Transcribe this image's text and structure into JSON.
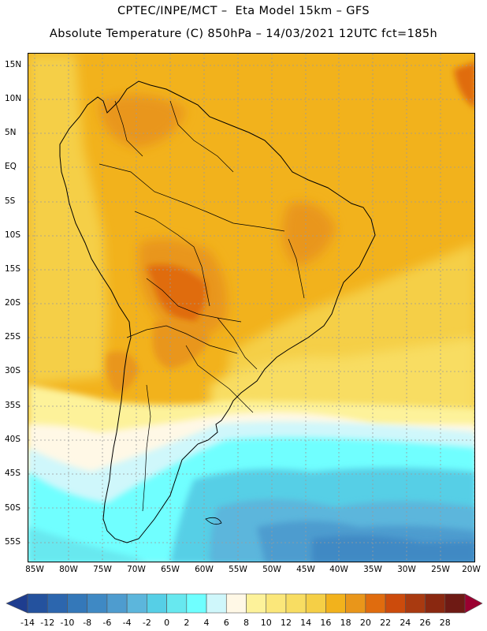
{
  "header": {
    "line1": "CPTEC/INPE/MCT –  Eta Model 15km – GFS",
    "line2": "Absolute Temperature (C) 850hPa – 14/03/2021 12UTC fct=185h"
  },
  "axes": {
    "lat_labels": [
      "15N",
      "10N",
      "5N",
      "EQ",
      "5S",
      "10S",
      "15S",
      "20S",
      "25S",
      "30S",
      "35S",
      "40S",
      "45S",
      "50S",
      "55S"
    ],
    "lon_labels": [
      "85W",
      "80W",
      "75W",
      "70W",
      "65W",
      "60W",
      "55W",
      "50W",
      "45W",
      "40W",
      "35W",
      "30W",
      "25W",
      "20W"
    ]
  },
  "colorbar": {
    "labels": [
      "-14",
      "-12",
      "-10",
      "-8",
      "-6",
      "-4",
      "-2",
      "0",
      "2",
      "4",
      "6",
      "8",
      "10",
      "12",
      "14",
      "16",
      "18",
      "20",
      "22",
      "24",
      "26",
      "28"
    ],
    "colors": [
      "#1e3d8f",
      "#24529e",
      "#2c66ae",
      "#3478b9",
      "#3f89c4",
      "#4e9ccf",
      "#5cb6dc",
      "#56cfe6",
      "#67e8ef",
      "#6fffff",
      "#cff7fb",
      "#fff8e6",
      "#fdf29a",
      "#fbe77a",
      "#f8dd62",
      "#f5cf46",
      "#f2b21c",
      "#e9961a",
      "#e06c0e",
      "#cc4b0c",
      "#a93a10",
      "#8a2810",
      "#6e1a14",
      "#9a0030"
    ]
  }
}
